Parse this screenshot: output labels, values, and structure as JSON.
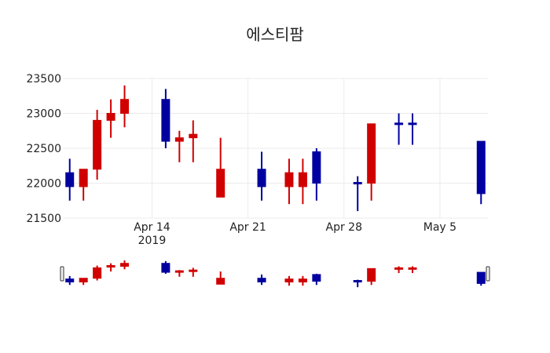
{
  "chart_data": {
    "type": "candlestick",
    "title": "에스티팜",
    "xlabel": "",
    "ylabel": "",
    "ylim": [
      21500,
      23500
    ],
    "yticks": [
      21500,
      22000,
      22500,
      23000,
      23500
    ],
    "xticks": [
      {
        "date": "2019-04-14",
        "label": "Apr 14",
        "sublabel": "2019"
      },
      {
        "date": "2019-04-21",
        "label": "Apr 21",
        "sublabel": ""
      },
      {
        "date": "2019-04-28",
        "label": "Apr 28",
        "sublabel": ""
      },
      {
        "date": "2019-05-05",
        "label": "May 5",
        "sublabel": ""
      }
    ],
    "xrange": [
      "2019-04-07T12:00",
      "2019-05-08T12:00"
    ],
    "grid": true,
    "rangeslider": true,
    "increasing_color": "#d10000",
    "decreasing_color": "#0000a0",
    "candles": [
      {
        "date": "2019-04-08",
        "open": 22150,
        "high": 22350,
        "low": 21750,
        "close": 21950
      },
      {
        "date": "2019-04-09",
        "open": 21950,
        "high": 22200,
        "low": 21750,
        "close": 22200
      },
      {
        "date": "2019-04-10",
        "open": 22200,
        "high": 23050,
        "low": 22050,
        "close": 22900
      },
      {
        "date": "2019-04-11",
        "open": 22900,
        "high": 23200,
        "low": 22650,
        "close": 23000
      },
      {
        "date": "2019-04-12",
        "open": 23000,
        "high": 23400,
        "low": 22800,
        "close": 23200
      },
      {
        "date": "2019-04-15",
        "open": 23200,
        "high": 23350,
        "low": 22500,
        "close": 22600
      },
      {
        "date": "2019-04-16",
        "open": 22600,
        "high": 22750,
        "low": 22300,
        "close": 22650
      },
      {
        "date": "2019-04-17",
        "open": 22650,
        "high": 22900,
        "low": 22300,
        "close": 22700
      },
      {
        "date": "2019-04-19",
        "open": 21800,
        "high": 22650,
        "low": 21800,
        "close": 22200
      },
      {
        "date": "2019-04-22",
        "open": 22200,
        "high": 22450,
        "low": 21750,
        "close": 21950
      },
      {
        "date": "2019-04-24",
        "open": 21950,
        "high": 22350,
        "low": 21700,
        "close": 22150
      },
      {
        "date": "2019-04-25",
        "open": 21950,
        "high": 22350,
        "low": 21700,
        "close": 22150
      },
      {
        "date": "2019-04-26",
        "open": 22450,
        "high": 22500,
        "low": 21750,
        "close": 22000
      },
      {
        "date": "2019-04-29",
        "open": 22000,
        "high": 22100,
        "low": 21600,
        "close": 22000
      },
      {
        "date": "2019-04-30",
        "open": 22000,
        "high": 22850,
        "low": 21750,
        "close": 22850
      },
      {
        "date": "2019-05-02",
        "open": 22850,
        "high": 23000,
        "low": 22550,
        "close": 22850
      },
      {
        "date": "2019-05-03",
        "open": 22850,
        "high": 23000,
        "low": 22550,
        "close": 22850
      },
      {
        "date": "2019-05-08",
        "open": 22600,
        "high": 22600,
        "low": 21700,
        "close": 21850
      }
    ]
  }
}
